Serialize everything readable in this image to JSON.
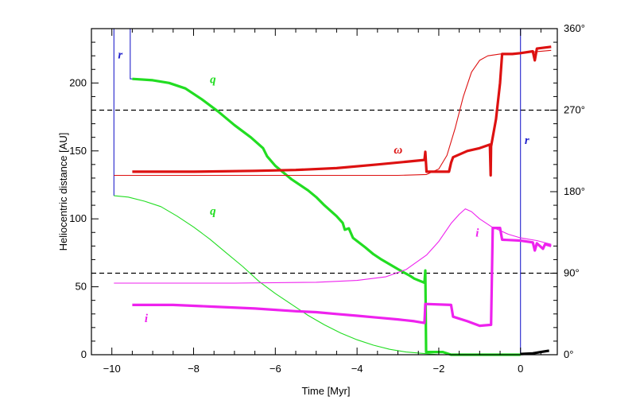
{
  "chart_data": {
    "type": "line",
    "title": "",
    "xlabel": "Time [Myr]",
    "ylabel_left": "Heliocentric distance [AU]",
    "xlim": [
      -10.5,
      0.9
    ],
    "ylim_left": [
      0,
      240
    ],
    "ylim_right": [
      0,
      360
    ],
    "x_ticks": [
      -10,
      -8,
      -6,
      -4,
      -2,
      0
    ],
    "x_tick_labels": [
      "−10",
      "−8",
      "−6",
      "−4",
      "−2",
      "0"
    ],
    "y_left_ticks": [
      0,
      50,
      100,
      150,
      200
    ],
    "y_left_tick_labels": [
      "0",
      "50",
      "100",
      "150",
      "200"
    ],
    "y_right_ticks": [
      0,
      90,
      180,
      270,
      360
    ],
    "y_right_tick_labels": [
      "0°",
      "90°",
      "180°",
      "270°",
      "360°"
    ],
    "reference_lines_right_deg": [
      90,
      270
    ],
    "colors": {
      "r": "#2222cc",
      "q": "#22dd22",
      "omega": "#dd1111",
      "i": "#ee22ee",
      "q_late": "#000000",
      "dashed": "#000000"
    },
    "labels": {
      "r_left": "r",
      "r_right": "r",
      "q_thick": "q",
      "q_thin": "q",
      "omega": "ω",
      "i_thick": "i",
      "i_thin": "i"
    },
    "series": [
      {
        "name": "r",
        "axis": "left",
        "style": "thin",
        "points": [
          [
            -9.95,
            117
          ],
          [
            -9.95,
            240
          ],
          [
            -9.55,
            240
          ],
          [
            -9.55,
            203
          ],
          [
            -9.5,
            203
          ]
        ],
        "points_right": [
          [
            0,
            240
          ],
          [
            0,
            0
          ]
        ]
      },
      {
        "name": "q",
        "axis": "left",
        "style": "thick",
        "points": [
          [
            -9.5,
            203
          ],
          [
            -9.0,
            202
          ],
          [
            -8.6,
            200
          ],
          [
            -8.2,
            196
          ],
          [
            -7.8,
            188
          ],
          [
            -7.4,
            179
          ],
          [
            -7.0,
            169
          ],
          [
            -6.6,
            160
          ],
          [
            -6.3,
            152
          ],
          [
            -6.2,
            146
          ],
          [
            -6.0,
            139
          ],
          [
            -5.6,
            129
          ],
          [
            -5.2,
            121
          ],
          [
            -5.0,
            116
          ],
          [
            -4.8,
            110
          ],
          [
            -4.5,
            102
          ],
          [
            -4.35,
            97
          ],
          [
            -4.3,
            92
          ],
          [
            -4.2,
            93
          ],
          [
            -4.1,
            86
          ],
          [
            -3.8,
            79
          ],
          [
            -3.6,
            74
          ],
          [
            -3.4,
            70
          ],
          [
            -3.0,
            63
          ],
          [
            -2.7,
            58
          ],
          [
            -2.6,
            56
          ],
          [
            -2.35,
            53
          ],
          [
            -2.33,
            62
          ],
          [
            -2.31,
            2
          ],
          [
            -1.9,
            2
          ],
          [
            -1.7,
            0
          ],
          [
            -0.7,
            0
          ],
          [
            0.0,
            0
          ]
        ]
      },
      {
        "name": "q (late, black)",
        "axis": "left",
        "style": "thick",
        "points": [
          [
            0.0,
            0.5
          ],
          [
            0.3,
            1
          ],
          [
            0.5,
            2
          ],
          [
            0.7,
            3
          ]
        ]
      },
      {
        "name": "q",
        "axis": "left",
        "style": "thin",
        "points": [
          [
            -9.95,
            117
          ],
          [
            -9.6,
            116
          ],
          [
            -9.2,
            113
          ],
          [
            -8.8,
            109
          ],
          [
            -8.4,
            102
          ],
          [
            -8.0,
            94
          ],
          [
            -7.6,
            85
          ],
          [
            -7.2,
            75
          ],
          [
            -6.8,
            65
          ],
          [
            -6.4,
            54
          ],
          [
            -6.0,
            45
          ],
          [
            -5.6,
            37
          ],
          [
            -5.2,
            29
          ],
          [
            -4.8,
            22
          ],
          [
            -4.4,
            16
          ],
          [
            -4.0,
            11
          ],
          [
            -3.6,
            7
          ],
          [
            -3.2,
            4
          ],
          [
            -2.8,
            2
          ],
          [
            -2.4,
            1
          ],
          [
            -2.0,
            0
          ]
        ]
      },
      {
        "name": "ω",
        "axis": "right",
        "style": "thick",
        "points": [
          [
            -9.5,
            202
          ],
          [
            -8.0,
            202
          ],
          [
            -6.5,
            203
          ],
          [
            -5.5,
            204
          ],
          [
            -4.5,
            206
          ],
          [
            -3.5,
            210
          ],
          [
            -2.8,
            213
          ],
          [
            -2.35,
            215
          ],
          [
            -2.33,
            224
          ],
          [
            -2.3,
            202
          ],
          [
            -1.75,
            202
          ],
          [
            -1.7,
            212
          ],
          [
            -1.65,
            218
          ],
          [
            -1.3,
            225
          ],
          [
            -1.0,
            228
          ],
          [
            -0.75,
            232
          ],
          [
            -0.73,
            198
          ],
          [
            -0.72,
            230
          ],
          [
            -0.6,
            260
          ],
          [
            -0.5,
            300
          ],
          [
            -0.45,
            332
          ],
          [
            -0.2,
            332
          ],
          [
            0.0,
            333
          ],
          [
            0.3,
            335
          ],
          [
            0.35,
            325
          ],
          [
            0.4,
            338
          ],
          [
            0.75,
            340
          ]
        ]
      },
      {
        "name": "ω",
        "axis": "right",
        "style": "thin",
        "points": [
          [
            -9.95,
            198
          ],
          [
            -6.0,
            198
          ],
          [
            -3.0,
            198
          ],
          [
            -2.3,
            199
          ],
          [
            -2.0,
            205
          ],
          [
            -1.8,
            220
          ],
          [
            -1.6,
            250
          ],
          [
            -1.4,
            285
          ],
          [
            -1.2,
            312
          ],
          [
            -1.0,
            325
          ],
          [
            -0.8,
            330
          ],
          [
            -0.5,
            332
          ],
          [
            0.0,
            333
          ],
          [
            0.75,
            336
          ]
        ]
      },
      {
        "name": "i",
        "axis": "right",
        "style": "thick",
        "points": [
          [
            -9.5,
            55
          ],
          [
            -8.5,
            55
          ],
          [
            -7.5,
            53
          ],
          [
            -6.5,
            51
          ],
          [
            -5.5,
            48
          ],
          [
            -5.0,
            47
          ],
          [
            -4.5,
            45
          ],
          [
            -4.0,
            43
          ],
          [
            -3.5,
            41
          ],
          [
            -3.0,
            39
          ],
          [
            -2.6,
            37
          ],
          [
            -2.35,
            35
          ],
          [
            -2.33,
            56
          ],
          [
            -1.7,
            55
          ],
          [
            -1.65,
            42
          ],
          [
            -1.3,
            37
          ],
          [
            -1.0,
            32
          ],
          [
            -0.72,
            33
          ],
          [
            -0.68,
            140
          ],
          [
            -0.5,
            140
          ],
          [
            -0.45,
            127
          ],
          [
            0.0,
            126
          ],
          [
            0.3,
            124
          ],
          [
            0.35,
            115
          ],
          [
            0.4,
            123
          ],
          [
            0.55,
            117
          ],
          [
            0.6,
            122
          ],
          [
            0.75,
            120
          ]
        ]
      },
      {
        "name": "i",
        "axis": "right",
        "style": "thin",
        "points": [
          [
            -9.95,
            79
          ],
          [
            -7.0,
            79
          ],
          [
            -5.0,
            80
          ],
          [
            -4.0,
            82
          ],
          [
            -3.3,
            86
          ],
          [
            -2.8,
            94
          ],
          [
            -2.3,
            110
          ],
          [
            -2.0,
            125
          ],
          [
            -1.7,
            145
          ],
          [
            -1.5,
            155
          ],
          [
            -1.35,
            161
          ],
          [
            -1.2,
            158
          ],
          [
            -1.0,
            150
          ],
          [
            -0.7,
            141
          ],
          [
            -0.3,
            133
          ],
          [
            0.0,
            129
          ],
          [
            0.4,
            126
          ],
          [
            0.75,
            122
          ]
        ]
      }
    ]
  }
}
